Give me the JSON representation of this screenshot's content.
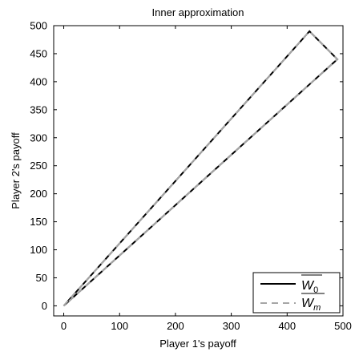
{
  "chart_data": {
    "type": "line",
    "title": "Inner approximation",
    "xlabel": "Player 1's payoff",
    "ylabel": "Player 2's payoff",
    "xlim": [
      -18,
      500
    ],
    "ylim": [
      -18,
      500
    ],
    "xticks": [
      0,
      100,
      200,
      300,
      400,
      500
    ],
    "yticks": [
      0,
      50,
      100,
      150,
      200,
      250,
      300,
      350,
      400,
      450,
      500
    ],
    "grid": false,
    "legend_position": "bottom-right",
    "series": [
      {
        "name": "W_0",
        "style": "solid",
        "color": "#000000",
        "x": [
          0,
          440,
          490,
          0
        ],
        "y": [
          0,
          490,
          440,
          0
        ]
      },
      {
        "name": "W_m",
        "style": "dashed",
        "color": "#a6a6a6",
        "x": [
          0,
          440,
          490,
          0
        ],
        "y": [
          0,
          490,
          440,
          0
        ]
      }
    ],
    "legend": [
      {
        "main": "W",
        "sub": "0"
      },
      {
        "main": "W",
        "sub": "m"
      }
    ]
  }
}
